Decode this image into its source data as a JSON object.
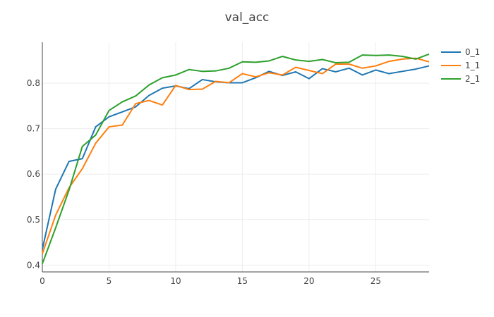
{
  "chart_data": {
    "type": "line",
    "title": "val_acc",
    "xlabel": "",
    "ylabel": "",
    "xlim": [
      0,
      29
    ],
    "ylim": [
      0.385,
      0.89
    ],
    "x_ticks": [
      0,
      5,
      10,
      15,
      20,
      25
    ],
    "y_ticks": [
      0.4,
      0.5,
      0.6,
      0.7,
      0.8
    ],
    "x_tick_labels": [
      "0",
      "5",
      "10",
      "15",
      "20",
      "25"
    ],
    "y_tick_labels": [
      "0.4",
      "0.5",
      "0.6",
      "0.7",
      "0.8"
    ],
    "grid": true,
    "legend_position": "top-right",
    "x": [
      0,
      1,
      2,
      3,
      4,
      5,
      6,
      7,
      8,
      9,
      10,
      11,
      12,
      13,
      14,
      15,
      16,
      17,
      18,
      19,
      20,
      21,
      22,
      23,
      24,
      25,
      26,
      27,
      28,
      29
    ],
    "series": [
      {
        "name": "0_1",
        "color": "#1f77b4",
        "values": [
          0.435,
          0.567,
          0.628,
          0.634,
          0.704,
          0.726,
          0.737,
          0.748,
          0.773,
          0.789,
          0.794,
          0.788,
          0.808,
          0.803,
          0.801,
          0.801,
          0.812,
          0.826,
          0.817,
          0.825,
          0.81,
          0.832,
          0.825,
          0.833,
          0.818,
          0.829,
          0.821,
          0.826,
          0.831,
          0.838
        ]
      },
      {
        "name": "1_1",
        "color": "#ff7f0e",
        "values": [
          0.425,
          0.51,
          0.57,
          0.612,
          0.668,
          0.704,
          0.708,
          0.755,
          0.762,
          0.752,
          0.795,
          0.786,
          0.787,
          0.804,
          0.801,
          0.821,
          0.814,
          0.823,
          0.818,
          0.835,
          0.828,
          0.821,
          0.842,
          0.842,
          0.833,
          0.838,
          0.848,
          0.853,
          0.855,
          0.847
        ]
      },
      {
        "name": "2_1",
        "color": "#2ca02c",
        "values": [
          0.403,
          0.482,
          0.565,
          0.661,
          0.686,
          0.74,
          0.759,
          0.772,
          0.796,
          0.812,
          0.818,
          0.83,
          0.826,
          0.827,
          0.833,
          0.847,
          0.846,
          0.849,
          0.859,
          0.851,
          0.848,
          0.852,
          0.845,
          0.846,
          0.862,
          0.861,
          0.862,
          0.859,
          0.853,
          0.864
        ]
      }
    ]
  }
}
